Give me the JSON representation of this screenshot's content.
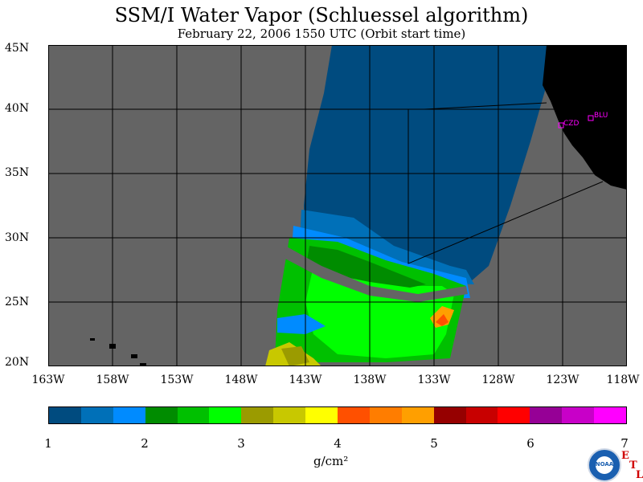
{
  "title": "SSM/I Water Vapor (Schluessel algorithm)",
  "subtitle": "February 22, 2006  1550 UTC  (Orbit start time)",
  "lat_labels": [
    "45N",
    "40N",
    "35N",
    "30N",
    "25N",
    "20N"
  ],
  "lon_labels": [
    "163W",
    "158W",
    "153W",
    "148W",
    "143W",
    "138W",
    "133W",
    "128W",
    "123W",
    "118W"
  ],
  "station_labels": [
    "CZD",
    "BLU"
  ],
  "colorbar": {
    "ticks": [
      "1",
      "2",
      "3",
      "4",
      "5",
      "6",
      "7"
    ],
    "units": "g/cm²",
    "colors": [
      "#004b7f",
      "#0070b8",
      "#008bff",
      "#008c00",
      "#00c000",
      "#00ff00",
      "#9b9b00",
      "#c8c800",
      "#ffff00",
      "#ff5000",
      "#ff7d00",
      "#ff9f00",
      "#960000",
      "#c80000",
      "#ff0000",
      "#960096",
      "#c800c8",
      "#ff00ff"
    ]
  },
  "logo_text": "NOAA",
  "etl_letters": [
    "E",
    "T",
    "L"
  ],
  "map_colors": {
    "background": "#646464",
    "land": "#000000",
    "grid": "#000000",
    "station": "#ff00ff"
  },
  "chart_data": {
    "type": "map",
    "lat_range": [
      20,
      45
    ],
    "lon_range": [
      -163,
      -118
    ],
    "units": "g/cm²",
    "scale_range": [
      1,
      7
    ],
    "stations": [
      {
        "name": "CZD",
        "lat": 38.6,
        "lon": -123.2
      },
      {
        "name": "BLU",
        "lat": 39.2,
        "lon": -120.9
      }
    ]
  }
}
